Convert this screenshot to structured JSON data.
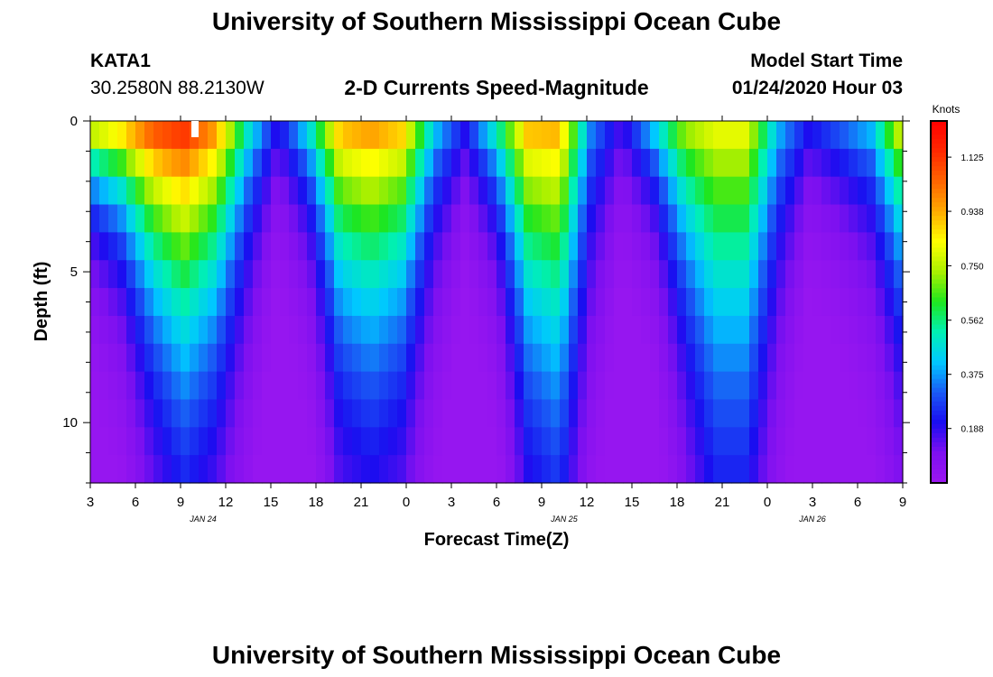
{
  "header": {
    "title_top": "University of Southern Mississippi Ocean Cube",
    "station_id": "KATA1",
    "station_coords": "30.2580N 88.2130W",
    "chart_title": "2-D Currents Speed-Magnitude",
    "model_label": "Model Start Time",
    "model_time": "01/24/2020 Hour 03",
    "title_bottom": "University of Southern Mississippi Ocean Cube"
  },
  "colors": {
    "background": "#ffffff",
    "scale": [
      "#9c17f0",
      "#7d10f0",
      "#1a0df0",
      "#1a5af5",
      "#00c8ff",
      "#00f0b4",
      "#1ee61e",
      "#aaf000",
      "#ffff00",
      "#ffaa00",
      "#ff6400",
      "#ff2800",
      "#ff0000"
    ]
  },
  "chart_data": {
    "type": "heatmap",
    "title": "2-D Currents Speed-Magnitude",
    "xlabel": "Forecast Time(Z)",
    "ylabel": "Depth (ft)",
    "colorbar_label": "Knots",
    "x_tick_labels": [
      "3",
      "6",
      "9",
      "12",
      "15",
      "18",
      "21",
      "0",
      "3",
      "6",
      "9",
      "12",
      "15",
      "18",
      "21",
      "0",
      "3",
      "6",
      "9"
    ],
    "x_day_labels": [
      {
        "label": "JAN 24",
        "tick_index": 2.5
      },
      {
        "label": "JAN 25",
        "tick_index": 10.5
      },
      {
        "label": "JAN 26",
        "tick_index": 16
      }
    ],
    "y_tick_labels": [
      "0",
      "5",
      "10"
    ],
    "y_tick_values": [
      0,
      5,
      10
    ],
    "ylim": [
      0,
      12
    ],
    "depth_levels_ft": [
      0,
      1,
      2,
      3,
      4,
      5,
      6,
      7,
      8,
      9,
      10,
      11,
      12
    ],
    "colorbar_ticks": [
      0.188,
      0.375,
      0.562,
      0.75,
      0.938,
      1.125
    ],
    "colorbar_tick_labels": [
      "0.188",
      "0.375",
      "0.562",
      "0.750",
      "0.938",
      "1.125"
    ],
    "zlim": [
      0.0,
      1.25
    ],
    "time_range_hours": [
      0,
      54
    ],
    "surface_speed_knots": [
      0.75,
      0.85,
      1.05,
      1.12,
      0.95,
      0.5,
      0.18,
      0.45,
      0.9,
      0.95,
      0.88,
      0.42,
      0.2,
      0.5,
      0.9,
      0.92,
      0.35,
      0.15,
      0.4,
      0.7,
      0.8,
      0.8,
      0.4,
      0.2,
      0.3,
      0.4,
      0.8
    ],
    "decay_scale_ft": [
      2.5,
      3.5,
      6.0,
      8.0,
      7.0,
      5.0,
      2.5,
      3.5,
      7.0,
      8.0,
      7.0,
      4.5,
      2.5,
      3.5,
      8.0,
      10.0,
      6.0,
      2.5,
      3.0,
      6.0,
      10.0,
      10.0,
      6.0,
      2.5,
      3.0,
      4.0,
      6.0
    ]
  }
}
